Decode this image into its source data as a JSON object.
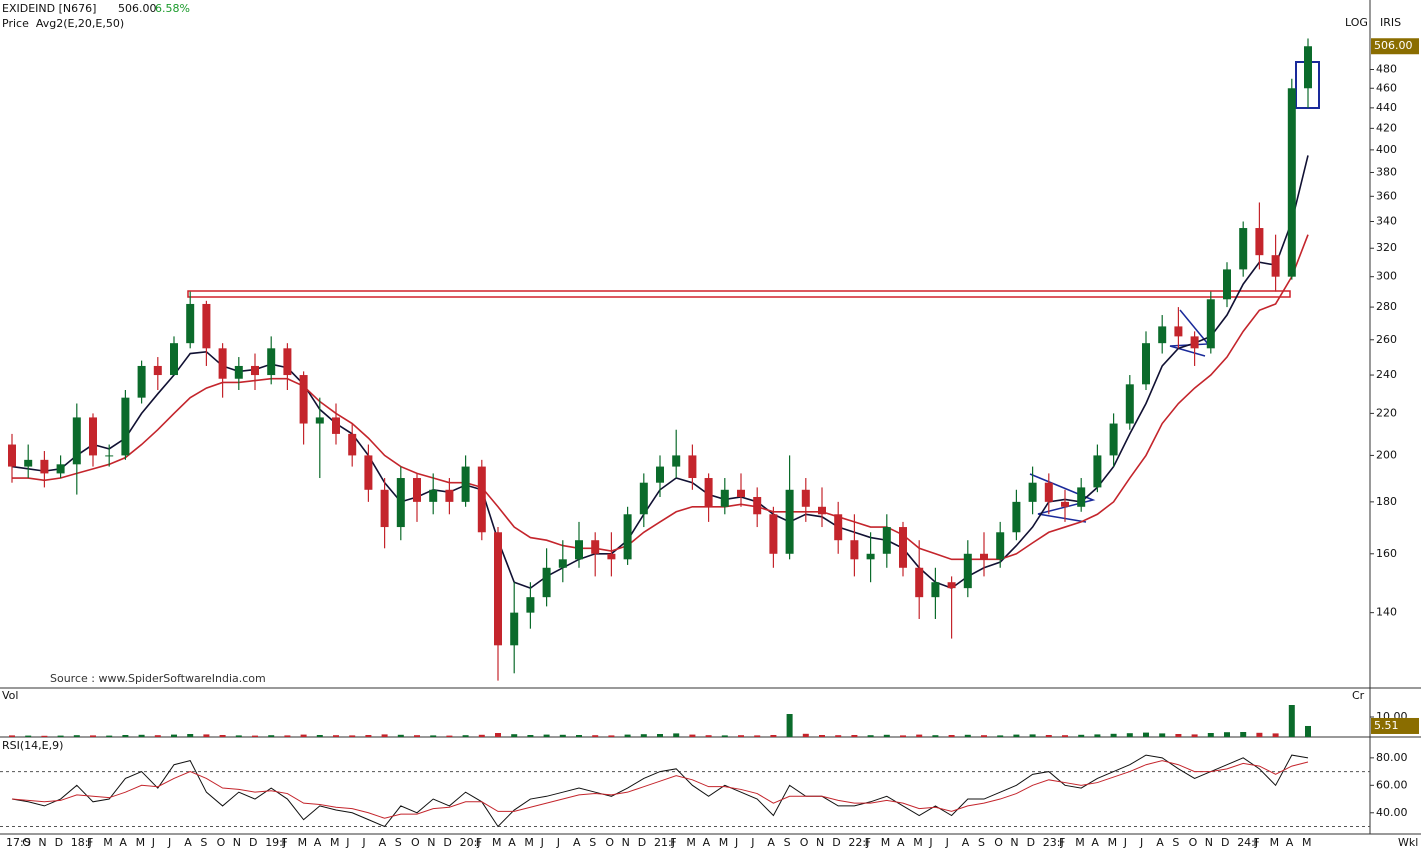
{
  "chart_data": [
    {
      "type": "candlestick",
      "title": "EXIDEIND [N676]",
      "change": "6.58%",
      "subtitle": "Price  Avg2(E,20,E,50)",
      "scale_label": "LOG",
      "brand": "IRIS",
      "source": "Source : www.SpiderSoftwareIndia.com",
      "log_scale": true,
      "ylim": [
        118,
        525
      ],
      "yticks": [
        140,
        160,
        180,
        200,
        220,
        240,
        260,
        280,
        300,
        320,
        340,
        360,
        380,
        400,
        420,
        440,
        460,
        480
      ],
      "price_tag": {
        "value": 506,
        "label": "506.00"
      },
      "up_color": "#0b6b2b",
      "down_color": "#c4252c",
      "open": [
        205,
        195,
        198,
        192,
        196,
        218,
        200,
        200,
        228,
        245,
        240,
        258,
        282,
        255,
        238,
        245,
        240,
        255,
        240,
        215,
        218,
        210,
        200,
        185,
        170,
        190,
        180,
        185,
        180,
        195,
        168,
        130,
        140,
        145,
        155,
        158,
        165,
        160,
        158,
        175,
        188,
        195,
        200,
        190,
        178,
        185,
        182,
        175,
        160,
        185,
        178,
        175,
        165,
        158,
        160,
        170,
        155,
        145,
        150,
        148,
        160,
        158,
        168,
        180,
        188,
        180,
        178,
        186,
        200,
        215,
        235,
        258,
        268,
        262,
        255,
        285,
        305,
        335,
        315,
        300,
        460
      ],
      "high": [
        210,
        205,
        202,
        200,
        225,
        220,
        205,
        232,
        248,
        250,
        262,
        290,
        284,
        258,
        250,
        252,
        262,
        258,
        242,
        228,
        225,
        215,
        205,
        190,
        195,
        192,
        192,
        190,
        200,
        198,
        170,
        150,
        150,
        162,
        165,
        172,
        168,
        168,
        178,
        192,
        200,
        212,
        205,
        192,
        190,
        192,
        186,
        178,
        200,
        190,
        186,
        180,
        175,
        168,
        175,
        172,
        165,
        155,
        152,
        165,
        168,
        172,
        185,
        195,
        192,
        185,
        190,
        205,
        220,
        240,
        265,
        275,
        280,
        265,
        290,
        310,
        340,
        355,
        330,
        470,
        515
      ],
      "low": [
        188,
        190,
        186,
        190,
        183,
        195,
        195,
        198,
        225,
        232,
        240,
        255,
        245,
        228,
        232,
        232,
        235,
        232,
        205,
        190,
        205,
        195,
        180,
        162,
        165,
        172,
        175,
        175,
        178,
        165,
        120,
        122,
        135,
        142,
        150,
        155,
        152,
        152,
        156,
        170,
        182,
        190,
        185,
        172,
        175,
        178,
        170,
        155,
        158,
        172,
        170,
        160,
        152,
        150,
        155,
        152,
        138,
        138,
        132,
        145,
        152,
        155,
        165,
        175,
        175,
        172,
        176,
        184,
        195,
        212,
        232,
        252,
        255,
        245,
        252,
        280,
        300,
        305,
        290,
        298,
        440
      ],
      "close": [
        195,
        198,
        192,
        196,
        218,
        200,
        200,
        228,
        245,
        240,
        258,
        282,
        255,
        238,
        245,
        240,
        255,
        240,
        215,
        218,
        210,
        200,
        185,
        170,
        190,
        180,
        185,
        180,
        195,
        168,
        130,
        140,
        145,
        155,
        158,
        165,
        160,
        158,
        175,
        188,
        195,
        200,
        190,
        178,
        185,
        182,
        175,
        160,
        185,
        178,
        175,
        165,
        158,
        160,
        170,
        155,
        145,
        150,
        148,
        160,
        158,
        168,
        180,
        188,
        180,
        178,
        186,
        200,
        215,
        235,
        258,
        268,
        262,
        255,
        285,
        305,
        335,
        315,
        300,
        460,
        506
      ],
      "overlays": [
        {
          "color": "#111133",
          "values": [
            195,
            194,
            193,
            194,
            200,
            205,
            203,
            208,
            220,
            230,
            240,
            252,
            253,
            245,
            242,
            243,
            246,
            244,
            235,
            222,
            215,
            210,
            200,
            188,
            180,
            182,
            185,
            184,
            187,
            185,
            165,
            150,
            148,
            152,
            155,
            158,
            160,
            160,
            165,
            175,
            185,
            190,
            188,
            183,
            181,
            182,
            180,
            175,
            172,
            175,
            174,
            170,
            168,
            166,
            165,
            162,
            155,
            150,
            148,
            152,
            155,
            157,
            163,
            170,
            180,
            181,
            180,
            186,
            195,
            210,
            225,
            245,
            255,
            258,
            262,
            275,
            295,
            310,
            308,
            340,
            395
          ]
        },
        {
          "color": "#c4252c",
          "values": [
            190,
            190,
            189,
            190,
            192,
            194,
            196,
            199,
            205,
            212,
            220,
            228,
            233,
            236,
            236,
            237,
            238,
            238,
            234,
            226,
            220,
            215,
            208,
            200,
            195,
            192,
            190,
            188,
            188,
            186,
            178,
            170,
            166,
            165,
            163,
            162,
            162,
            161,
            163,
            168,
            172,
            176,
            178,
            178,
            178,
            179,
            178,
            176,
            176,
            176,
            176,
            174,
            172,
            170,
            170,
            167,
            162,
            160,
            158,
            158,
            158,
            158,
            160,
            164,
            168,
            170,
            172,
            175,
            180,
            190,
            200,
            215,
            225,
            233,
            240,
            250,
            265,
            278,
            282,
            300,
            330
          ]
        }
      ]
    },
    {
      "type": "volume",
      "title": "Vol",
      "unit": "Cr",
      "ylim": [
        0,
        18.5
      ],
      "yticks": [
        {
          "value": 10,
          "label": "10.00"
        }
      ],
      "values": [
        0.8,
        0.7,
        0.6,
        0.7,
        0.9,
        0.8,
        0.7,
        1.0,
        1.1,
        0.9,
        1.2,
        1.5,
        1.3,
        1.0,
        0.8,
        0.7,
        0.9,
        0.8,
        1.2,
        1.0,
        0.9,
        0.8,
        1.0,
        1.3,
        1.1,
        0.9,
        0.8,
        0.7,
        0.9,
        1.1,
        2.0,
        1.4,
        1.0,
        1.2,
        1.1,
        1.0,
        0.9,
        0.8,
        1.2,
        1.4,
        1.5,
        1.8,
        1.2,
        0.9,
        0.8,
        0.9,
        0.8,
        1.0,
        11.5,
        1.6,
        1.0,
        0.9,
        1.0,
        0.9,
        1.1,
        0.8,
        1.2,
        0.9,
        1.0,
        1.1,
        0.9,
        0.8,
        1.2,
        1.3,
        1.0,
        0.9,
        1.1,
        1.3,
        1.6,
        1.9,
        2.2,
        1.8,
        1.5,
        1.3,
        2.0,
        2.4,
        2.5,
        2.1,
        1.8,
        16.0,
        5.51
      ]
    },
    {
      "type": "line",
      "title": "RSI(14,E,9)",
      "interval": "Wkl",
      "ylim": [
        26,
        93
      ],
      "levels": [
        30,
        70
      ],
      "yticks": [
        {
          "value": 40,
          "label": "40.00"
        },
        {
          "value": 60,
          "label": "60.00"
        },
        {
          "value": 80,
          "label": "80.00"
        }
      ],
      "categories": [
        "17:S",
        "O",
        "N",
        "D",
        "18:J",
        "F",
        "M",
        "A",
        "M",
        "J",
        "J",
        "A",
        "S",
        "O",
        "N",
        "D",
        "19:J",
        "F",
        "M",
        "A",
        "M",
        "J",
        "J",
        "A",
        "S",
        "O",
        "N",
        "D",
        "20:J",
        "F",
        "M",
        "A",
        "M",
        "J",
        "J",
        "A",
        "S",
        "O",
        "N",
        "D",
        "21:J",
        "F",
        "M",
        "A",
        "M",
        "J",
        "J",
        "A",
        "S",
        "O",
        "N",
        "D",
        "22:J",
        "F",
        "M",
        "A",
        "M",
        "J",
        "J",
        "A",
        "S",
        "O",
        "N",
        "D",
        "23:J",
        "F",
        "M",
        "A",
        "M",
        "J",
        "J",
        "A",
        "S",
        "O",
        "N",
        "D",
        "24:J",
        "F",
        "M",
        "A",
        "M"
      ],
      "series": [
        {
          "color": "#111111",
          "values": [
            50,
            48,
            45,
            50,
            60,
            48,
            50,
            65,
            70,
            58,
            75,
            78,
            55,
            45,
            55,
            50,
            58,
            50,
            35,
            45,
            42,
            40,
            35,
            30,
            45,
            40,
            50,
            45,
            55,
            48,
            30,
            42,
            50,
            52,
            55,
            58,
            55,
            52,
            58,
            65,
            70,
            72,
            60,
            52,
            60,
            55,
            50,
            38,
            60,
            52,
            52,
            45,
            45,
            48,
            52,
            45,
            38,
            45,
            38,
            50,
            50,
            55,
            60,
            68,
            70,
            60,
            58,
            65,
            70,
            75,
            82,
            80,
            72,
            65,
            70,
            75,
            80,
            72,
            60,
            82,
            80
          ]
        },
        {
          "color": "#c4252c",
          "values": [
            50,
            49,
            48,
            49,
            53,
            52,
            51,
            55,
            60,
            59,
            65,
            70,
            65,
            58,
            57,
            55,
            56,
            54,
            47,
            46,
            44,
            43,
            40,
            36,
            39,
            39,
            43,
            44,
            48,
            48,
            41,
            41,
            44,
            47,
            50,
            53,
            54,
            53,
            55,
            59,
            63,
            67,
            64,
            59,
            59,
            57,
            54,
            47,
            52,
            52,
            52,
            49,
            47,
            47,
            49,
            47,
            43,
            44,
            41,
            45,
            47,
            50,
            54,
            60,
            64,
            62,
            60,
            62,
            66,
            70,
            75,
            78,
            75,
            70,
            70,
            72,
            76,
            74,
            68,
            74,
            77
          ]
        }
      ]
    }
  ]
}
